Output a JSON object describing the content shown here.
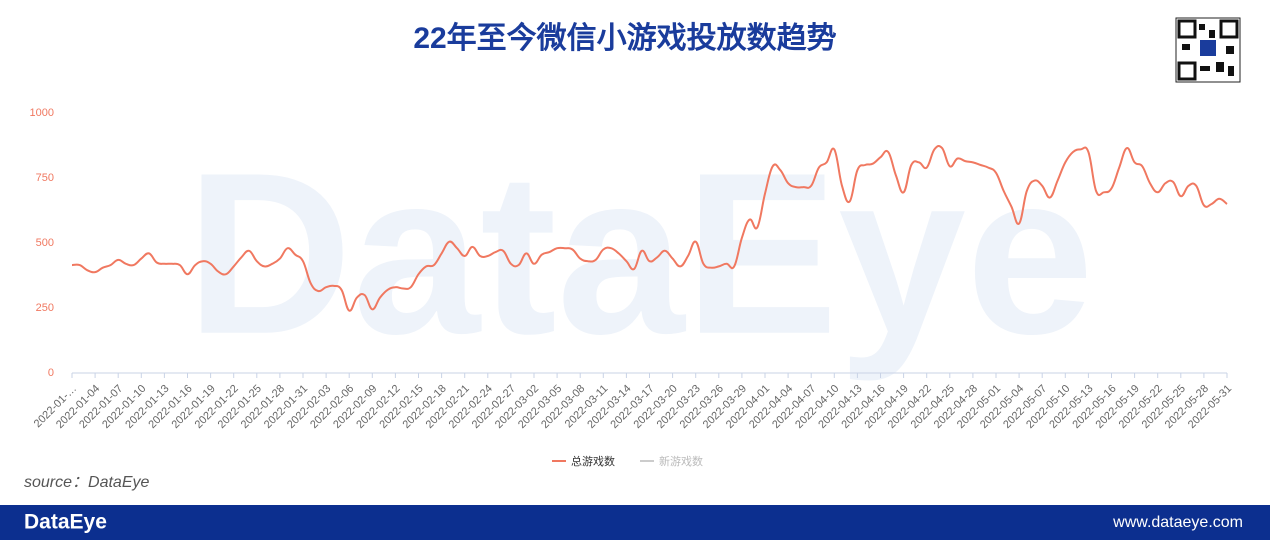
{
  "chart_data": {
    "type": "line",
    "title": "22年至今微信小游戏投放数趋势",
    "watermark": "DataEye",
    "source": "source：DataEye",
    "footer_brand": "DataEye",
    "footer_url": "www.dataeye.com",
    "categories": [
      "2022-01-…",
      null,
      null,
      "2022-01-04",
      null,
      null,
      "2022-01-07",
      null,
      null,
      "2022-01-10",
      null,
      null,
      "2022-01-13",
      null,
      null,
      "2022-01-16",
      null,
      null,
      "2022-01-19",
      null,
      null,
      "2022-01-22",
      null,
      null,
      "2022-01-25",
      null,
      null,
      "2022-01-28",
      null,
      null,
      "2022-01-31",
      null,
      null,
      "2022-02-03",
      null,
      null,
      "2022-02-06",
      null,
      null,
      "2022-02-09",
      null,
      null,
      "2022-02-12",
      null,
      null,
      "2022-02-15",
      null,
      null,
      "2022-02-18",
      null,
      null,
      "2022-02-21",
      null,
      null,
      "2022-02-24",
      null,
      null,
      "2022-02-27",
      null,
      null,
      "2022-03-02",
      null,
      null,
      "2022-03-05",
      null,
      null,
      "2022-03-08",
      null,
      null,
      "2022-03-11",
      null,
      null,
      "2022-03-14",
      null,
      null,
      "2022-03-17",
      null,
      null,
      "2022-03-20",
      null,
      null,
      "2022-03-23",
      null,
      null,
      "2022-03-26",
      null,
      null,
      "2022-03-29",
      null,
      null,
      "2022-04-01",
      null,
      null,
      "2022-04-04",
      null,
      null,
      "2022-04-07",
      null,
      null,
      "2022-04-10",
      null,
      null,
      "2022-04-13",
      null,
      null,
      "2022-04-16",
      null,
      null,
      "2022-04-19",
      null,
      null,
      "2022-04-22",
      null,
      null,
      "2022-04-25",
      null,
      null,
      "2022-04-28",
      null,
      null,
      "2022-05-01",
      null,
      null,
      "2022-05-04",
      null,
      null,
      "2022-05-07",
      null,
      null,
      "2022-05-10",
      null,
      null,
      "2022-05-13",
      null,
      null,
      "2022-05-16",
      null,
      null,
      "2022-05-19",
      null,
      null,
      "2022-05-22",
      null,
      null,
      "2022-05-25",
      null,
      null,
      "2022-05-28",
      null,
      null,
      "2022-05-31"
    ],
    "series": [
      {
        "name": "总游戏数",
        "color": "#f07860",
        "visible": true,
        "values": [
          415,
          415,
          395,
          388,
          405,
          415,
          435,
          420,
          415,
          440,
          460,
          425,
          420,
          420,
          415,
          380,
          415,
          430,
          420,
          390,
          380,
          410,
          445,
          470,
          430,
          410,
          420,
          440,
          480,
          455,
          430,
          345,
          315,
          330,
          335,
          320,
          240,
          290,
          300,
          245,
          290,
          320,
          330,
          325,
          330,
          380,
          410,
          415,
          460,
          505,
          480,
          450,
          485,
          450,
          450,
          465,
          470,
          420,
          415,
          460,
          420,
          455,
          465,
          480,
          480,
          475,
          440,
          430,
          435,
          475,
          480,
          460,
          430,
          400,
          470,
          430,
          445,
          470,
          440,
          410,
          450,
          505,
          420,
          405,
          410,
          420,
          410,
          520,
          590,
          560,
          690,
          795,
          780,
          730,
          715,
          715,
          720,
          790,
          810,
          860,
          720,
          660,
          780,
          800,
          805,
          830,
          850,
          760,
          695,
          800,
          810,
          790,
          860,
          865,
          795,
          825,
          815,
          810,
          800,
          790,
          770,
          700,
          640,
          575,
          700,
          740,
          720,
          675,
          740,
          810,
          850,
          860,
          850,
          700,
          695,
          710,
          790,
          865,
          810,
          795,
          730,
          695,
          730,
          735,
          680,
          720,
          720,
          645,
          650,
          670,
          650
        ]
      },
      {
        "name": "新游戏数",
        "color": "#cccccc",
        "visible": false,
        "values": [
          null,
          null,
          null,
          null,
          null,
          null,
          null,
          null,
          null,
          null,
          null,
          null,
          null,
          null,
          null,
          null,
          null,
          null,
          null,
          null,
          null,
          null,
          null,
          null,
          null,
          null,
          null,
          null,
          null,
          null,
          null,
          null,
          null,
          null,
          null,
          null,
          null,
          null,
          null,
          null,
          null,
          null,
          null,
          null,
          null,
          null,
          null,
          null,
          null,
          null,
          null,
          null,
          null,
          null,
          null,
          null,
          null,
          null,
          null,
          null,
          null,
          null,
          null,
          null,
          null,
          null,
          null,
          null,
          null,
          null,
          null,
          null,
          null,
          null,
          null,
          null,
          null,
          null,
          null,
          null,
          null,
          null,
          null,
          null,
          null,
          null,
          null,
          null,
          null,
          null,
          null,
          null,
          null,
          null,
          null,
          null,
          null,
          null,
          null,
          null,
          null,
          null,
          null,
          null,
          null,
          null,
          null,
          null,
          null,
          null,
          null,
          null,
          null,
          null,
          null,
          null,
          null,
          null,
          null,
          null,
          null,
          null,
          null,
          null,
          null,
          null,
          null,
          null,
          null,
          null,
          null,
          null,
          null,
          null,
          null,
          null,
          null,
          null,
          null,
          null,
          null,
          null,
          null,
          null,
          null,
          null,
          null,
          null,
          null,
          null,
          null
        ]
      }
    ],
    "ylim": [
      0,
      1000
    ],
    "yticks": [
      0,
      250,
      500,
      750,
      1000
    ],
    "grid": false,
    "legend": "bottom"
  }
}
